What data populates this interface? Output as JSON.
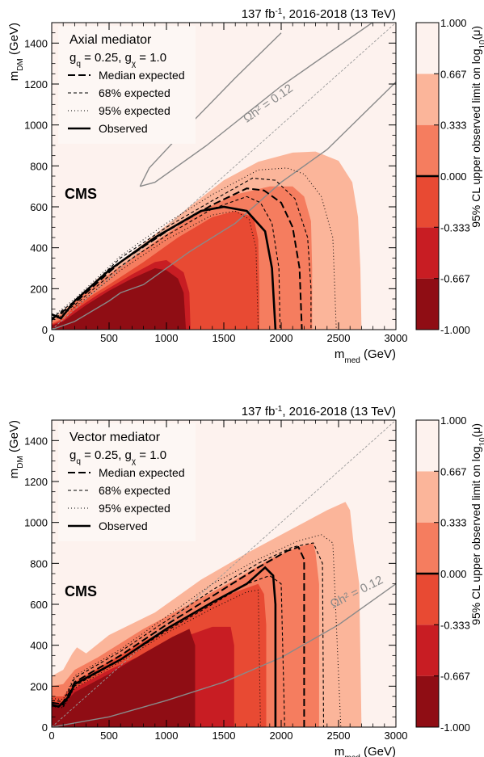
{
  "colors": {
    "band_0": "#fdf2ee",
    "band_1": "#fbb59a",
    "band_2": "#f57d5f",
    "band_3": "#e84a33",
    "band_4": "#c81d23",
    "band_5": "#8f0d14",
    "relic": "#8a8a8a",
    "diagonal": "#9a9a9a"
  },
  "colorbar": {
    "title": "95% CL upper observed limit on log",
    "title_sub": "10",
    "title_tail": "(μ)",
    "ticks": [
      "1.000",
      "0.667",
      "0.333",
      "0.000",
      "-0.333",
      "-0.667",
      "-1.000"
    ],
    "range": [
      -1.0,
      1.0
    ]
  },
  "chart_data": [
    {
      "type": "heatmap",
      "id": "axial",
      "lumi": "137 fb",
      "lumi_sup": "-1",
      "lumi_tail": ", 2016-2018 (13 TeV)",
      "experiment": "CMS",
      "legend_title": "Axial mediator",
      "couplings": [
        "g",
        "q",
        " = 0.25, g",
        "χ",
        " = 1.0"
      ],
      "legend_placement": "top-left",
      "legend": [
        "Median expected",
        "68% expected",
        "95% expected",
        "Observed"
      ],
      "xlabel": "m",
      "xlabel_sub": "med",
      "xlabel_unit": " (GeV)",
      "ylabel": "m",
      "ylabel_sub": "DM",
      "ylabel_unit": " (GeV)",
      "xlim": [
        0,
        3000
      ],
      "ylim": [
        0,
        1500
      ],
      "xticks": [
        "0",
        "500",
        "1000",
        "1500",
        "2000",
        "2500",
        "3000"
      ],
      "yticks": [
        "0",
        "200",
        "400",
        "600",
        "800",
        "1000",
        "1200",
        "1400"
      ],
      "relic_label": "Ωh² = 0.12",
      "contours": {
        "band_1": [
          [
            0,
            45
          ],
          [
            100,
            95
          ],
          [
            180,
            130
          ],
          [
            400,
            250
          ],
          [
            800,
            420
          ],
          [
            1200,
            600
          ],
          [
            1500,
            730
          ],
          [
            1800,
            820
          ],
          [
            2100,
            865
          ],
          [
            2300,
            870
          ],
          [
            2500,
            825
          ],
          [
            2620,
            720
          ],
          [
            2670,
            550
          ],
          [
            2690,
            300
          ],
          [
            2700,
            0
          ]
        ],
        "band_2": [
          [
            0,
            40
          ],
          [
            100,
            80
          ],
          [
            200,
            140
          ],
          [
            500,
            270
          ],
          [
            900,
            430
          ],
          [
            1300,
            580
          ],
          [
            1600,
            660
          ],
          [
            1900,
            700
          ],
          [
            2100,
            700
          ],
          [
            2200,
            650
          ],
          [
            2260,
            530
          ],
          [
            2270,
            300
          ],
          [
            2270,
            0
          ]
        ],
        "band_3": [
          [
            0,
            30
          ],
          [
            100,
            55
          ],
          [
            200,
            115
          ],
          [
            500,
            220
          ],
          [
            800,
            330
          ],
          [
            1100,
            450
          ],
          [
            1400,
            550
          ],
          [
            1600,
            580
          ],
          [
            1760,
            550
          ],
          [
            1800,
            440
          ],
          [
            1810,
            200
          ],
          [
            1810,
            0
          ]
        ],
        "band_4": [
          [
            0,
            25
          ],
          [
            100,
            45
          ],
          [
            200,
            95
          ],
          [
            400,
            170
          ],
          [
            700,
            270
          ],
          [
            900,
            330
          ],
          [
            1000,
            340
          ],
          [
            1150,
            280
          ],
          [
            1200,
            180
          ],
          [
            1210,
            0
          ]
        ],
        "band_5": [
          [
            0,
            20
          ],
          [
            100,
            40
          ],
          [
            300,
            120
          ],
          [
            500,
            190
          ],
          [
            700,
            250
          ],
          [
            900,
            300
          ],
          [
            1000,
            290
          ],
          [
            1100,
            250
          ],
          [
            1150,
            180
          ],
          [
            1170,
            0
          ]
        ]
      },
      "lines": {
        "median": [
          [
            0,
            50
          ],
          [
            200,
            130
          ],
          [
            600,
            330
          ],
          [
            1000,
            480
          ],
          [
            1400,
            610
          ],
          [
            1700,
            690
          ],
          [
            1850,
            680
          ],
          [
            2000,
            620
          ],
          [
            2100,
            500
          ],
          [
            2160,
            300
          ],
          [
            2180,
            0
          ]
        ],
        "exp68_low": [
          [
            0,
            45
          ],
          [
            200,
            120
          ],
          [
            600,
            310
          ],
          [
            1000,
            460
          ],
          [
            1400,
            590
          ],
          [
            1700,
            650
          ],
          [
            1820,
            620
          ],
          [
            1920,
            520
          ],
          [
            1980,
            300
          ],
          [
            1990,
            0
          ]
        ],
        "exp68_high": [
          [
            0,
            55
          ],
          [
            200,
            140
          ],
          [
            600,
            350
          ],
          [
            1000,
            500
          ],
          [
            1400,
            630
          ],
          [
            1750,
            740
          ],
          [
            1950,
            730
          ],
          [
            2120,
            640
          ],
          [
            2230,
            450
          ],
          [
            2260,
            200
          ],
          [
            2260,
            0
          ]
        ],
        "exp95_low": [
          [
            0,
            40
          ],
          [
            200,
            110
          ],
          [
            600,
            290
          ],
          [
            1000,
            440
          ],
          [
            1400,
            560
          ],
          [
            1600,
            580
          ],
          [
            1720,
            540
          ],
          [
            1780,
            400
          ],
          [
            1800,
            0
          ]
        ],
        "exp95_high": [
          [
            0,
            60
          ],
          [
            200,
            150
          ],
          [
            600,
            360
          ],
          [
            1000,
            520
          ],
          [
            1400,
            660
          ],
          [
            1800,
            780
          ],
          [
            2050,
            790
          ],
          [
            2200,
            760
          ],
          [
            2350,
            650
          ],
          [
            2450,
            450
          ],
          [
            2480,
            0
          ]
        ],
        "observed": [
          [
            0,
            75
          ],
          [
            80,
            55
          ],
          [
            200,
            140
          ],
          [
            500,
            290
          ],
          [
            900,
            450
          ],
          [
            1300,
            580
          ],
          [
            1500,
            600
          ],
          [
            1700,
            580
          ],
          [
            1860,
            480
          ],
          [
            1920,
            300
          ],
          [
            1950,
            0
          ]
        ],
        "relic_upper": [
          [
            770,
            700
          ],
          [
            850,
            790
          ],
          [
            1200,
            1000
          ],
          [
            1600,
            1230
          ],
          [
            2000,
            1450
          ]
        ],
        "relic_lower": [
          [
            770,
            700
          ],
          [
            900,
            720
          ],
          [
            1350,
            900
          ],
          [
            2000,
            1190
          ],
          [
            3000,
            1580
          ]
        ],
        "relic_main": [
          [
            0,
            0
          ],
          [
            200,
            40
          ],
          [
            500,
            140
          ],
          [
            600,
            180
          ],
          [
            800,
            220
          ],
          [
            1200,
            380
          ],
          [
            1600,
            520
          ],
          [
            2000,
            720
          ],
          [
            2400,
            880
          ],
          [
            3000,
            1210
          ]
        ]
      },
      "diagonal": [
        [
          0,
          0
        ],
        [
          3000,
          1500
        ]
      ]
    },
    {
      "type": "heatmap",
      "id": "vector",
      "lumi": "137 fb",
      "lumi_sup": "-1",
      "lumi_tail": ", 2016-2018 (13 TeV)",
      "experiment": "CMS",
      "legend_title": "Vector mediator",
      "couplings": [
        "g",
        "q",
        " = 0.25, g",
        "χ",
        " = 1.0"
      ],
      "legend_placement": "top-left",
      "legend": [
        "Median expected",
        "68% expected",
        "95% expected",
        "Observed"
      ],
      "xlabel": "m",
      "xlabel_sub": "med",
      "xlabel_unit": " (GeV)",
      "ylabel": "m",
      "ylabel_sub": "DM",
      "ylabel_unit": " (GeV)",
      "xlim": [
        0,
        3000
      ],
      "ylim": [
        0,
        1500
      ],
      "xticks": [
        "0",
        "500",
        "1000",
        "1500",
        "2000",
        "2500",
        "3000"
      ],
      "yticks": [
        "0",
        "200",
        "400",
        "600",
        "800",
        "1000",
        "1200",
        "1400"
      ],
      "relic_label": "Ωh² = 0.12",
      "contours": {
        "band_1": [
          [
            0,
            250
          ],
          [
            100,
            280
          ],
          [
            180,
            360
          ],
          [
            220,
            390
          ],
          [
            300,
            360
          ],
          [
            500,
            450
          ],
          [
            900,
            560
          ],
          [
            1300,
            720
          ],
          [
            1700,
            850
          ],
          [
            2100,
            970
          ],
          [
            2400,
            1060
          ],
          [
            2560,
            1100
          ],
          [
            2600,
            1060
          ],
          [
            2630,
            900
          ],
          [
            2680,
            700
          ],
          [
            2700,
            0
          ]
        ],
        "band_2": [
          [
            0,
            200
          ],
          [
            100,
            210
          ],
          [
            200,
            280
          ],
          [
            400,
            340
          ],
          [
            800,
            480
          ],
          [
            1200,
            600
          ],
          [
            1600,
            720
          ],
          [
            1900,
            820
          ],
          [
            2150,
            880
          ],
          [
            2280,
            900
          ],
          [
            2300,
            850
          ],
          [
            2330,
            700
          ],
          [
            2330,
            0
          ]
        ],
        "band_3": [
          [
            0,
            150
          ],
          [
            100,
            150
          ],
          [
            200,
            220
          ],
          [
            500,
            320
          ],
          [
            900,
            450
          ],
          [
            1300,
            580
          ],
          [
            1600,
            660
          ],
          [
            1800,
            700
          ],
          [
            1850,
            650
          ],
          [
            1870,
            500
          ],
          [
            1870,
            0
          ]
        ],
        "band_4": [
          [
            0,
            120
          ],
          [
            100,
            120
          ],
          [
            200,
            190
          ],
          [
            500,
            280
          ],
          [
            900,
            380
          ],
          [
            1200,
            450
          ],
          [
            1400,
            490
          ],
          [
            1560,
            490
          ],
          [
            1590,
            400
          ],
          [
            1590,
            0
          ]
        ],
        "band_5": [
          [
            0,
            100
          ],
          [
            100,
            110
          ],
          [
            200,
            170
          ],
          [
            500,
            260
          ],
          [
            800,
            360
          ],
          [
            1050,
            440
          ],
          [
            1200,
            480
          ],
          [
            1250,
            400
          ],
          [
            1250,
            0
          ]
        ]
      },
      "lines": {
        "median": [
          [
            0,
            120
          ],
          [
            100,
            110
          ],
          [
            200,
            220
          ],
          [
            600,
            350
          ],
          [
            1000,
            500
          ],
          [
            1400,
            640
          ],
          [
            1800,
            780
          ],
          [
            2050,
            860
          ],
          [
            2150,
            880
          ],
          [
            2200,
            820
          ],
          [
            2200,
            0
          ]
        ],
        "exp68_low": [
          [
            0,
            110
          ],
          [
            100,
            100
          ],
          [
            200,
            200
          ],
          [
            600,
            330
          ],
          [
            1000,
            470
          ],
          [
            1400,
            600
          ],
          [
            1700,
            700
          ],
          [
            1900,
            740
          ],
          [
            2000,
            700
          ],
          [
            2030,
            0
          ]
        ],
        "exp68_high": [
          [
            0,
            130
          ],
          [
            100,
            125
          ],
          [
            200,
            240
          ],
          [
            600,
            370
          ],
          [
            1000,
            520
          ],
          [
            1400,
            670
          ],
          [
            1800,
            800
          ],
          [
            2100,
            880
          ],
          [
            2280,
            900
          ],
          [
            2360,
            800
          ],
          [
            2370,
            0
          ]
        ],
        "exp95_low": [
          [
            0,
            100
          ],
          [
            100,
            95
          ],
          [
            200,
            190
          ],
          [
            600,
            320
          ],
          [
            1000,
            460
          ],
          [
            1400,
            580
          ],
          [
            1700,
            660
          ],
          [
            1800,
            670
          ],
          [
            1820,
            0
          ]
        ],
        "exp95_high": [
          [
            0,
            140
          ],
          [
            100,
            135
          ],
          [
            200,
            250
          ],
          [
            600,
            380
          ],
          [
            1000,
            540
          ],
          [
            1400,
            700
          ],
          [
            1800,
            820
          ],
          [
            2150,
            910
          ],
          [
            2350,
            940
          ],
          [
            2450,
            900
          ],
          [
            2520,
            0
          ]
        ],
        "observed": [
          [
            0,
            110
          ],
          [
            60,
            100
          ],
          [
            150,
            150
          ],
          [
            200,
            210
          ],
          [
            600,
            330
          ],
          [
            1000,
            480
          ],
          [
            1400,
            610
          ],
          [
            1700,
            700
          ],
          [
            1860,
            780
          ],
          [
            1930,
            740
          ],
          [
            1950,
            600
          ],
          [
            1950,
            0
          ]
        ],
        "relic_main": [
          [
            0,
            0
          ],
          [
            500,
            50
          ],
          [
            1000,
            130
          ],
          [
            1500,
            220
          ],
          [
            2000,
            340
          ],
          [
            2500,
            500
          ],
          [
            3000,
            700
          ]
        ]
      },
      "diagonal": [
        [
          0,
          0
        ],
        [
          3000,
          1500
        ]
      ]
    }
  ]
}
